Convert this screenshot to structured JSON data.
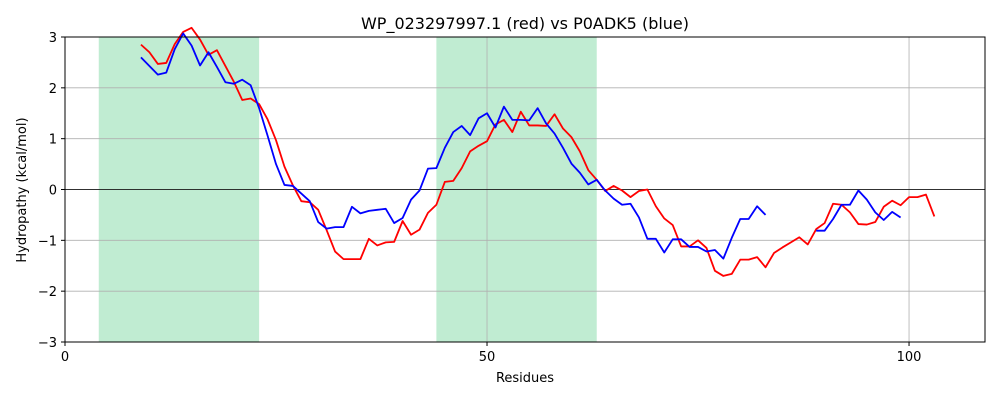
{
  "chart_data": {
    "type": "line",
    "title": "WP_023297997.1 (red) vs P0ADK5 (blue)",
    "xlabel": "Residues",
    "ylabel": "Hydropathy (kcal/mol)",
    "xlim": [
      0,
      109
    ],
    "ylim": [
      -3,
      3
    ],
    "xticks": [
      0,
      50,
      100
    ],
    "yticks": [
      -3,
      -2,
      -1,
      0,
      1,
      2,
      3
    ],
    "grid": true,
    "zero_line": true,
    "highlight_regions": [
      [
        4,
        23
      ],
      [
        44,
        63
      ]
    ],
    "highlight_color": "#c0ecd2",
    "series": [
      {
        "color": "#ff0000",
        "x": [
          9,
          10,
          11,
          12,
          13,
          14,
          15,
          16,
          17,
          18,
          19,
          20,
          21,
          22,
          23,
          24,
          25,
          26,
          27,
          28,
          29,
          30,
          31,
          32,
          33,
          34,
          35,
          36,
          37,
          38,
          39,
          40,
          41,
          42,
          43,
          44,
          45,
          46,
          47,
          48,
          49,
          50,
          51,
          52,
          53,
          54,
          55,
          56,
          57,
          58,
          59,
          60,
          61,
          62,
          63,
          64,
          65,
          66,
          67,
          68,
          69,
          70,
          71,
          72,
          73,
          74,
          75,
          76,
          77,
          78,
          79,
          80,
          81,
          82,
          83,
          84,
          85,
          86,
          87,
          88,
          89,
          90,
          91,
          92,
          93,
          94,
          95,
          96,
          97,
          98,
          99,
          100,
          101,
          102,
          103
        ],
        "y": [
          2.85,
          2.7,
          2.47,
          2.49,
          2.86,
          3.1,
          3.18,
          2.95,
          2.65,
          2.74,
          2.43,
          2.12,
          1.76,
          1.79,
          1.68,
          1.38,
          0.97,
          0.45,
          0.08,
          -0.23,
          -0.25,
          -0.4,
          -0.8,
          -1.22,
          -1.37,
          -1.37,
          -1.37,
          -0.97,
          -1.1,
          -1.04,
          -1.03,
          -0.62,
          -0.89,
          -0.79,
          -0.46,
          -0.3,
          0.15,
          0.17,
          0.42,
          0.75,
          0.86,
          0.95,
          1.28,
          1.37,
          1.13,
          1.53,
          1.26,
          1.26,
          1.25,
          1.48,
          1.2,
          1.03,
          0.75,
          0.38,
          0.19,
          -0.03,
          0.07,
          -0.02,
          -0.15,
          -0.03,
          0.0,
          -0.33,
          -0.57,
          -0.7,
          -1.12,
          -1.12,
          -1.0,
          -1.15,
          -1.6,
          -1.7,
          -1.66,
          -1.38,
          -1.38,
          -1.33,
          -1.53,
          -1.25,
          -1.14,
          -1.04,
          -0.94,
          -1.08,
          -0.78,
          -0.66,
          -0.28,
          -0.3,
          -0.45,
          -0.68,
          -0.69,
          -0.64,
          -0.34,
          -0.22,
          -0.31,
          -0.15,
          -0.15,
          -0.1,
          -0.53
        ]
      },
      {
        "color": "#0000ff",
        "x": [
          9,
          10,
          11,
          12,
          13,
          14,
          15,
          16,
          17,
          18,
          19,
          20,
          21,
          22,
          23,
          24,
          25,
          26,
          27,
          28,
          29,
          30,
          31,
          32,
          33,
          34,
          35,
          36,
          37,
          38,
          39,
          40,
          41,
          42,
          43,
          44,
          45,
          46,
          47,
          48,
          49,
          50,
          51,
          52,
          53,
          54,
          55,
          56,
          57,
          58,
          59,
          60,
          61,
          62,
          63,
          64,
          65,
          66,
          67,
          68,
          69,
          70,
          71,
          72,
          73,
          74,
          75,
          76,
          77,
          78,
          79,
          80,
          81,
          82,
          83,
          84,
          85
        ],
        "y": [
          2.6,
          2.43,
          2.26,
          2.3,
          2.76,
          3.07,
          2.83,
          2.44,
          2.7,
          2.41,
          2.11,
          2.08,
          2.16,
          2.05,
          1.6,
          1.06,
          0.5,
          0.09,
          0.07,
          -0.08,
          -0.23,
          -0.64,
          -0.77,
          -0.74,
          -0.74,
          -0.34,
          -0.47,
          -0.42,
          -0.4,
          -0.38,
          -0.66,
          -0.56,
          -0.2,
          -0.02,
          0.41,
          0.42,
          0.82,
          1.13,
          1.25,
          1.07,
          1.4,
          1.5,
          1.22,
          1.63,
          1.37,
          1.37,
          1.36,
          1.6,
          1.3,
          1.1,
          0.82,
          0.51,
          0.33,
          0.1,
          0.19,
          -0.02,
          -0.18,
          -0.3,
          -0.28,
          -0.55,
          -0.97,
          -0.97,
          -1.24,
          -0.98,
          -0.98,
          -1.13,
          -1.13,
          -1.22,
          -1.19,
          -1.36,
          -0.95,
          -0.58,
          -0.58,
          -0.33,
          -0.5,
          null,
          null
        ]
      },
      {
        "color": "#0000ff",
        "x": [
          89,
          90,
          91,
          92,
          93,
          94,
          95,
          96,
          97,
          98,
          99
        ],
        "y": [
          -0.81,
          -0.81,
          -0.58,
          -0.3,
          -0.3,
          -0.02,
          -0.2,
          -0.45,
          -0.6,
          -0.44,
          -0.55
        ]
      }
    ]
  }
}
